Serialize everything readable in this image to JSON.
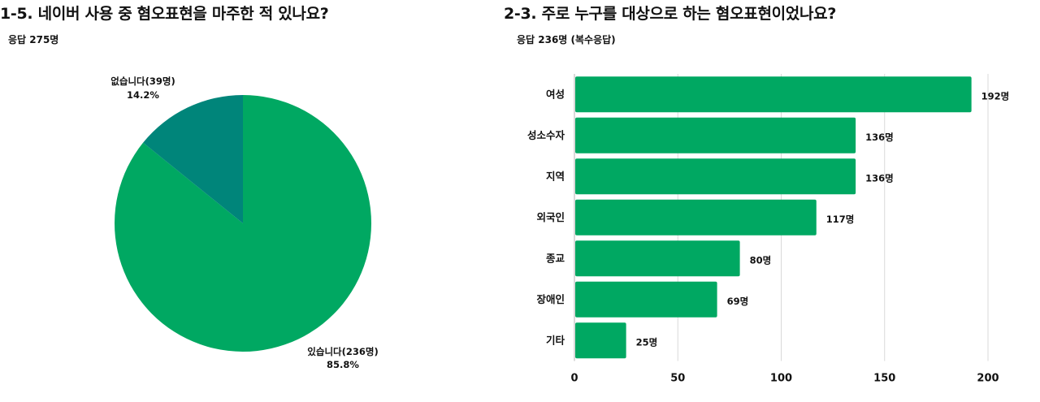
{
  "chart_data": [
    {
      "type": "pie",
      "title": "1-5. 네이버 사용 중 혐오표현을 마주한 적 있나요?",
      "subtitle": "응답 275명",
      "slices": [
        {
          "label": "있습니다(236명)",
          "percent_label": "85.8%",
          "value": 236,
          "color": "#00a862"
        },
        {
          "label": "없습니다(39명)",
          "percent_label": "14.2%",
          "value": 39,
          "color": "#00857a"
        }
      ]
    },
    {
      "type": "bar",
      "orientation": "horizontal",
      "title": "2-3. 주로 누구를 대상으로 하는 혐오표현이었나요?",
      "subtitle": "응답 236명 (복수응답)",
      "categories": [
        "여성",
        "성소수자",
        "지역",
        "외국인",
        "종교",
        "장애인",
        "기타"
      ],
      "values": [
        192,
        136,
        136,
        117,
        80,
        69,
        25
      ],
      "value_labels": [
        "192명",
        "136명",
        "136명",
        "117명",
        "80명",
        "69명",
        "25명"
      ],
      "xlim": [
        0,
        200
      ],
      "xticks": [
        0,
        50,
        100,
        150,
        200
      ],
      "grid": "vertical",
      "bar_color": "#00a862"
    }
  ]
}
